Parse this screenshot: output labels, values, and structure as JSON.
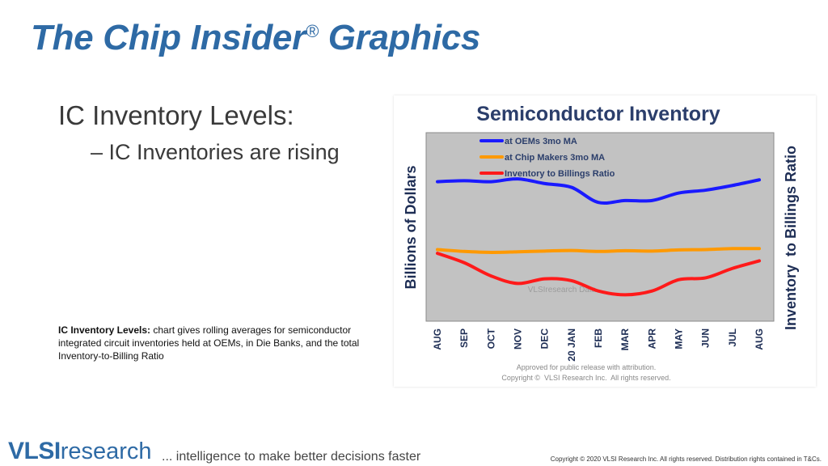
{
  "slide": {
    "title": "The Chip Insider",
    "title_mark": "®",
    "title_tail": " Graphics",
    "bullet_main": "IC Inventory Levels:",
    "bullet_sub": "– IC Inventories are rising",
    "caption_bold": "IC Inventory Levels:",
    "caption_text": " chart gives rolling averages for semiconductor integrated circuit inventories held at OEMs, in Die Banks, and the total Inventory-to-Billing Ratio"
  },
  "footer": {
    "logo_strong": "VLSI",
    "logo_light": "research",
    "tagline": "... intelligence to make better decisions faster",
    "copyright": "Copyright © 2020 VLSI Research Inc. All rights reserved. Distribution rights contained in T&Cs."
  },
  "chart_data": {
    "type": "line",
    "title": "Semiconductor Inventory",
    "ylabel": "Billions of Dollars",
    "y2label": "Inventory  to Billings Ratio",
    "categories": [
      "AUG",
      "SEP",
      "OCT",
      "NOV",
      "DEC",
      "20 JAN",
      "FEB",
      "MAR",
      "APR",
      "MAY",
      "JUN",
      "JUL",
      "AUG"
    ],
    "grid": false,
    "legend_placement": "top-left inside",
    "watermark": "VLSIresearch Data",
    "footnote_1": "Approved for public release with attribution.",
    "footnote_2": "Copyright ©  VLSI Research Inc.  All rights reserved.",
    "note": "Axes have no printed tick values; values are relative readings on a 0–100 scale of the plot height.",
    "ylim": [
      0,
      100
    ],
    "series": [
      {
        "name": "at OEMs 3mo MA",
        "color": "#1a1aff",
        "values": [
          74,
          74.5,
          74,
          75.5,
          73,
          71,
          63,
          64,
          64,
          68,
          69.5,
          72,
          75
        ]
      },
      {
        "name": "at Chip Makers 3mo MA",
        "color": "#ff9900",
        "values": [
          38,
          37,
          36.5,
          36.8,
          37.2,
          37.5,
          37,
          37.4,
          37.2,
          37.8,
          38,
          38.5,
          38.5
        ]
      },
      {
        "name": "Inventory to Billings Ratio",
        "color": "#ff1a1a",
        "values": [
          36,
          31,
          24,
          20,
          22.5,
          21.5,
          16,
          14,
          16,
          22,
          23,
          28,
          32
        ]
      }
    ],
    "colors": {
      "plot_bg": "#c2c2c2",
      "title": "#2b3e6b",
      "axis_text": "#1e2e55"
    }
  }
}
